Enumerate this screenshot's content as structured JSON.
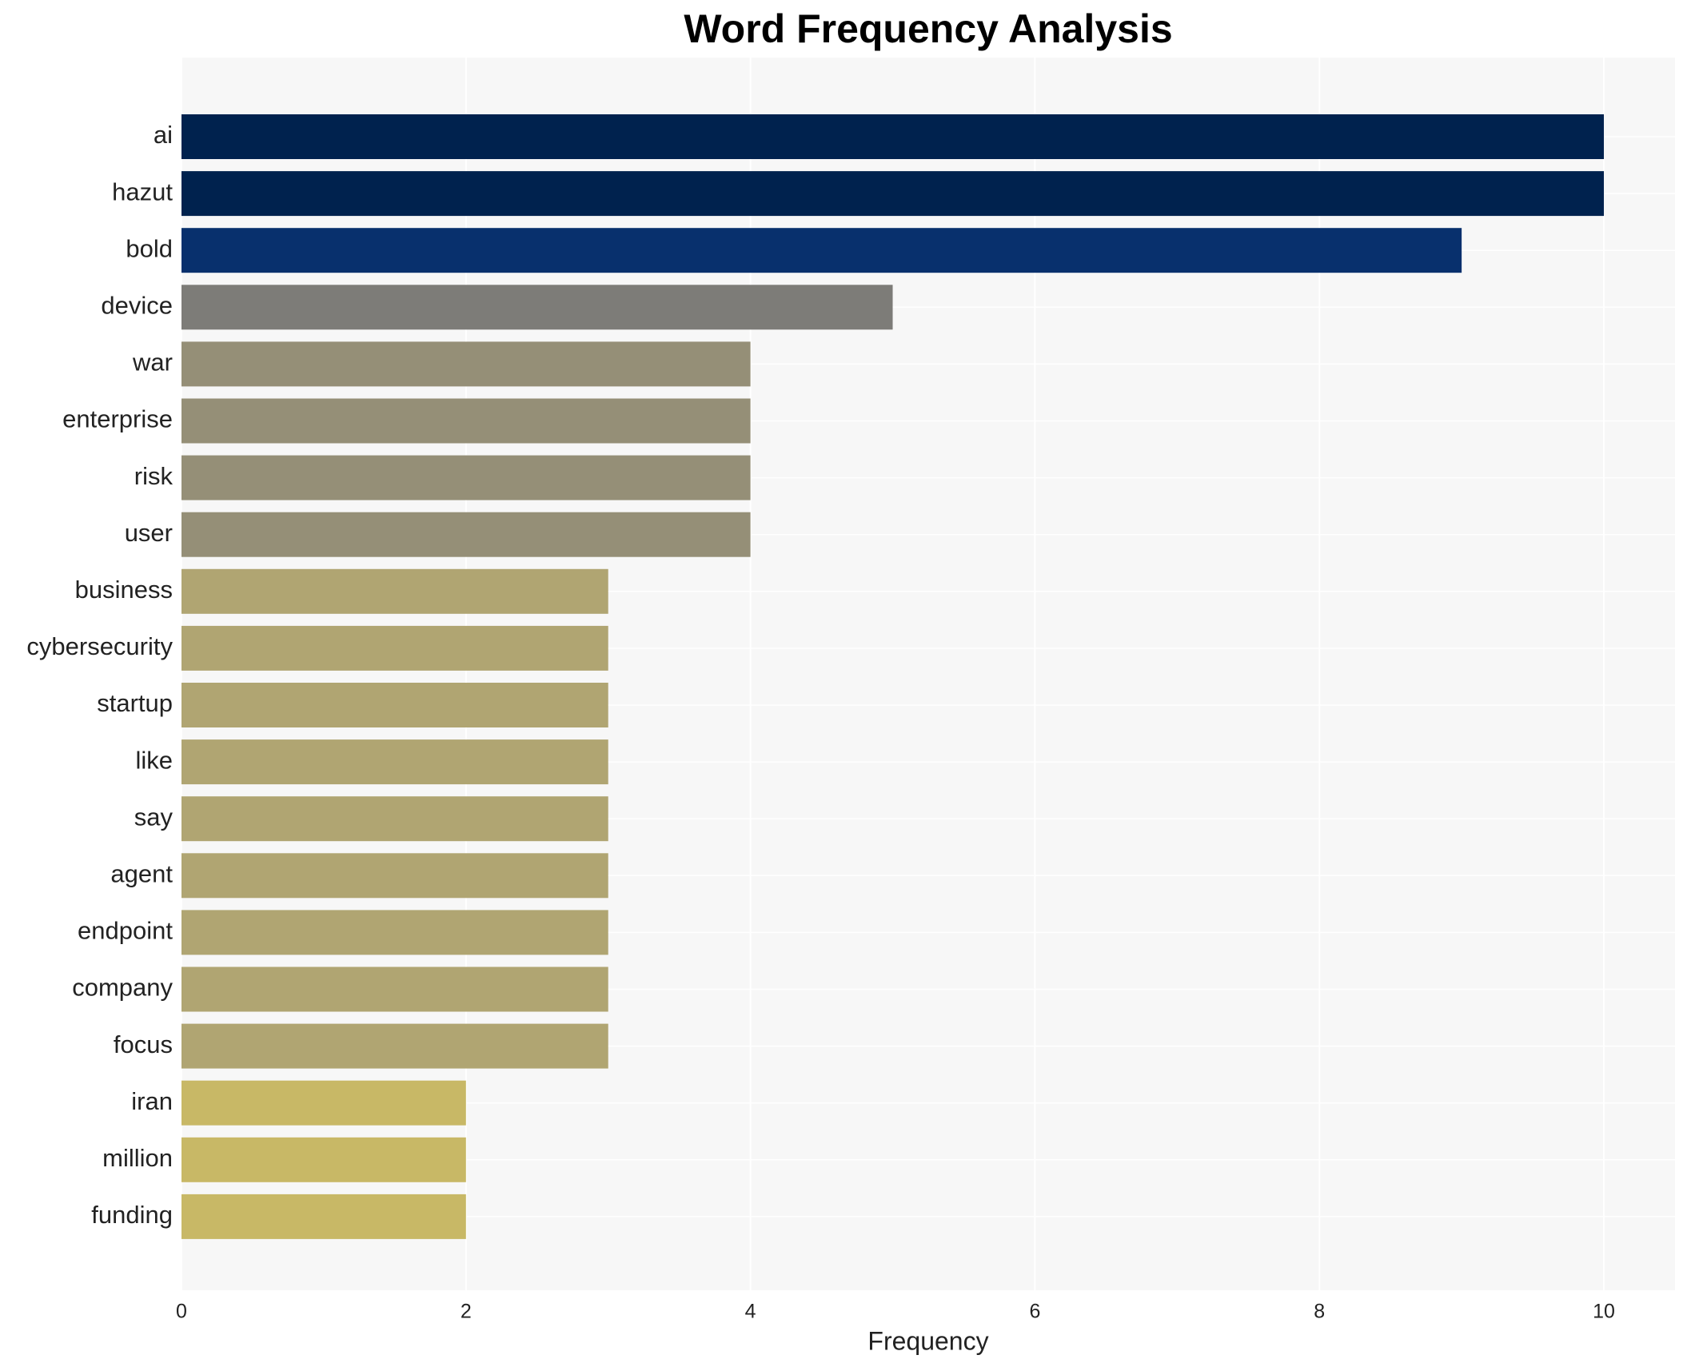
{
  "chart_data": {
    "type": "barh",
    "title": "Word Frequency Analysis",
    "x_label": "Frequency",
    "categories": [
      "ai",
      "hazut",
      "bold",
      "device",
      "war",
      "enterprise",
      "risk",
      "user",
      "business",
      "cybersecurity",
      "startup",
      "like",
      "say",
      "agent",
      "endpoint",
      "company",
      "focus",
      "iran",
      "million",
      "funding"
    ],
    "values": [
      10,
      10,
      9,
      5,
      4,
      4,
      4,
      4,
      3,
      3,
      3,
      3,
      3,
      3,
      3,
      3,
      3,
      2,
      2,
      2
    ],
    "colors": [
      "#00224e",
      "#00224e",
      "#08306d",
      "#7d7c78",
      "#958f77",
      "#958f77",
      "#958f77",
      "#958f77",
      "#b0a572",
      "#b0a572",
      "#b0a572",
      "#b0a572",
      "#b0a572",
      "#b0a572",
      "#b0a572",
      "#b0a572",
      "#b0a572",
      "#c8b866",
      "#c8b866",
      "#c8b866"
    ],
    "xlim": [
      0,
      10.5
    ],
    "xticks": [
      0,
      2,
      4,
      6,
      8,
      10
    ],
    "grid": true
  }
}
